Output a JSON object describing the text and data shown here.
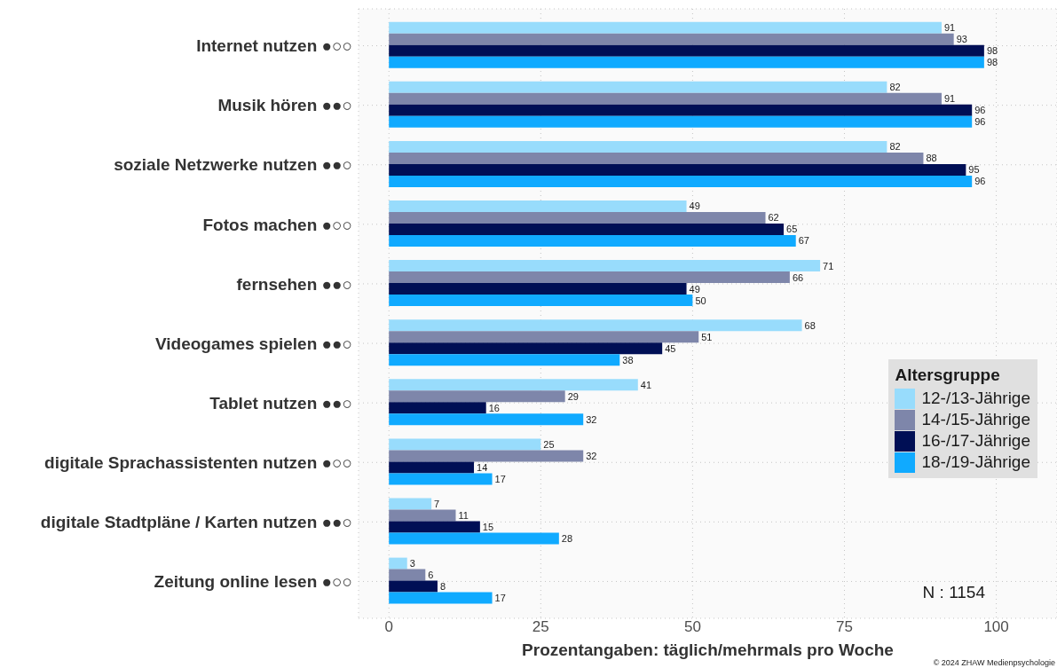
{
  "chart_data": {
    "type": "bar",
    "orientation": "horizontal",
    "categories": [
      "Internet nutzen ●○○",
      "Musik hören ●●○",
      "soziale Netzwerke nutzen ●●○",
      "Fotos machen ●○○",
      "fernsehen ●●○",
      "Videogames spielen ●●○",
      "Tablet nutzen ●●○",
      "digitale Sprachassistenten nutzen ●○○",
      "digitale Stadtpläne / Karten nutzen ●●○",
      "Zeitung online lesen ●○○"
    ],
    "series": [
      {
        "name": "12-/13-Jährige",
        "color": "#98dcfc",
        "values": [
          91,
          82,
          82,
          49,
          71,
          68,
          41,
          25,
          7,
          3
        ]
      },
      {
        "name": "14-/15-Jährige",
        "color": "#7e86aa",
        "values": [
          93,
          91,
          88,
          62,
          66,
          51,
          29,
          32,
          11,
          6
        ]
      },
      {
        "name": "16-/17-Jährige",
        "color": "#000f55",
        "values": [
          98,
          96,
          95,
          65,
          49,
          45,
          16,
          14,
          15,
          8
        ]
      },
      {
        "name": "18-/19-Jährige",
        "color": "#10aaff",
        "values": [
          98,
          96,
          96,
          67,
          50,
          38,
          32,
          17,
          28,
          17
        ]
      }
    ],
    "xlim": [
      -5,
      110
    ],
    "xticks": [
      0,
      25,
      50,
      75,
      100
    ],
    "xlabel": "Prozentangaben: täglich/mehrmals pro Woche",
    "legend_title": "Altersgruppe",
    "legend": "right",
    "grid": true,
    "data_labels": true,
    "annotations": [
      "N : 1154",
      "© 2024 ZHAW Medienpsychologie"
    ]
  }
}
